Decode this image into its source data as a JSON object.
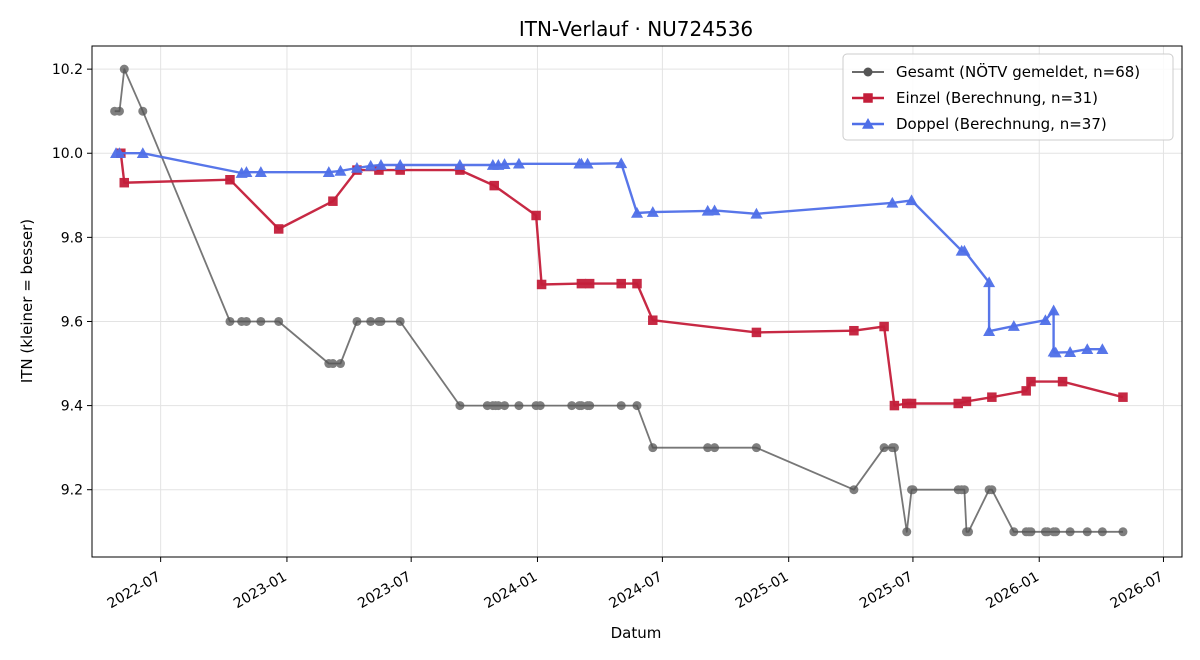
{
  "chart_data": {
    "type": "line",
    "title": "ITN-Verlauf · NU724536",
    "xlabel": "Datum",
    "ylabel": "ITN  (kleiner = besser)",
    "xlim": [
      "2022-03-23",
      "2026-07-28"
    ],
    "ylim": [
      9.04,
      10.255
    ],
    "grid": true,
    "legend_position": "top-right",
    "x_ticks": [
      "2022-07-01",
      "2023-01-01",
      "2023-07-01",
      "2024-01-01",
      "2024-07-01",
      "2025-01-01",
      "2025-07-01",
      "2026-01-01",
      "2026-07-01"
    ],
    "x_tick_labels": [
      "2022-07",
      "2023-01",
      "2023-07",
      "2024-01",
      "2024-07",
      "2025-01",
      "2025-07",
      "2026-01",
      "2026-07"
    ],
    "y_ticks": [
      9.2,
      9.4,
      9.6,
      9.8,
      10.0,
      10.2
    ],
    "y_tick_labels": [
      "9.2",
      "9.4",
      "9.6",
      "9.8",
      "10.0",
      "10.2"
    ],
    "series": [
      {
        "name": "Gesamt (NÖTV gemeldet, n=68)",
        "color": "#555555",
        "marker": "circle",
        "points": [
          [
            "2022-04-25",
            10.1
          ],
          [
            "2022-05-02",
            10.1
          ],
          [
            "2022-05-09",
            10.2
          ],
          [
            "2022-06-05",
            10.1
          ],
          [
            "2022-10-10",
            9.6
          ],
          [
            "2022-10-27",
            9.6
          ],
          [
            "2022-11-03",
            9.6
          ],
          [
            "2022-11-24",
            9.6
          ],
          [
            "2022-12-20",
            9.6
          ],
          [
            "2023-03-03",
            9.5
          ],
          [
            "2023-03-09",
            9.5
          ],
          [
            "2023-03-20",
            9.5
          ],
          [
            "2023-04-13",
            9.6
          ],
          [
            "2023-05-03",
            9.6
          ],
          [
            "2023-05-15",
            9.6
          ],
          [
            "2023-05-18",
            9.6
          ],
          [
            "2023-06-15",
            9.6
          ],
          [
            "2023-09-10",
            9.4
          ],
          [
            "2023-10-20",
            9.4
          ],
          [
            "2023-10-28",
            9.4
          ],
          [
            "2023-11-01",
            9.4
          ],
          [
            "2023-11-05",
            9.4
          ],
          [
            "2023-11-14",
            9.4
          ],
          [
            "2023-12-05",
            9.4
          ],
          [
            "2023-12-30",
            9.4
          ],
          [
            "2024-01-05",
            9.4
          ],
          [
            "2024-02-20",
            9.4
          ],
          [
            "2024-03-02",
            9.4
          ],
          [
            "2024-03-05",
            9.4
          ],
          [
            "2024-03-14",
            9.4
          ],
          [
            "2024-03-17",
            9.4
          ],
          [
            "2024-05-02",
            9.4
          ],
          [
            "2024-05-25",
            9.4
          ],
          [
            "2024-06-17",
            9.3
          ],
          [
            "2024-09-05",
            9.3
          ],
          [
            "2024-09-15",
            9.3
          ],
          [
            "2024-11-15",
            9.3
          ],
          [
            "2025-04-06",
            9.2
          ],
          [
            "2025-05-20",
            9.3
          ],
          [
            "2025-06-01",
            9.3
          ],
          [
            "2025-06-04",
            9.3
          ],
          [
            "2025-06-22",
            9.1
          ],
          [
            "2025-06-29",
            9.2
          ],
          [
            "2025-07-01",
            9.2
          ],
          [
            "2025-09-05",
            9.2
          ],
          [
            "2025-09-10",
            9.2
          ],
          [
            "2025-09-14",
            9.2
          ],
          [
            "2025-09-17",
            9.1
          ],
          [
            "2025-09-20",
            9.1
          ],
          [
            "2025-10-20",
            9.2
          ],
          [
            "2025-10-24",
            9.2
          ],
          [
            "2025-11-25",
            9.1
          ],
          [
            "2025-12-13",
            9.1
          ],
          [
            "2025-12-17",
            9.1
          ],
          [
            "2025-12-20",
            9.1
          ],
          [
            "2026-01-10",
            9.1
          ],
          [
            "2026-01-13",
            9.1
          ],
          [
            "2026-01-22",
            9.1
          ],
          [
            "2026-01-25",
            9.1
          ],
          [
            "2026-02-15",
            9.1
          ],
          [
            "2026-03-12",
            9.1
          ],
          [
            "2026-04-03",
            9.1
          ],
          [
            "2026-05-03",
            9.1
          ]
        ]
      },
      {
        "name": "Einzel (Berechnung, n=31)",
        "color": "#c41e3a",
        "marker": "square",
        "points": [
          [
            "2022-05-04",
            10.0
          ],
          [
            "2022-05-09",
            9.93
          ],
          [
            "2022-10-10",
            9.937
          ],
          [
            "2022-12-20",
            9.82
          ],
          [
            "2023-03-09",
            9.886
          ],
          [
            "2023-04-13",
            9.96
          ],
          [
            "2023-05-15",
            9.96
          ],
          [
            "2023-06-15",
            9.96
          ],
          [
            "2023-09-10",
            9.96
          ],
          [
            "2023-10-30",
            9.923
          ],
          [
            "2023-12-30",
            9.852
          ],
          [
            "2024-01-07",
            9.688
          ],
          [
            "2024-03-05",
            9.69
          ],
          [
            "2024-03-17",
            9.69
          ],
          [
            "2024-05-02",
            9.69
          ],
          [
            "2024-05-25",
            9.69
          ],
          [
            "2024-06-17",
            9.603
          ],
          [
            "2024-11-15",
            9.574
          ],
          [
            "2025-04-06",
            9.578
          ],
          [
            "2025-05-20",
            9.588
          ],
          [
            "2025-06-04",
            9.4
          ],
          [
            "2025-06-22",
            9.405
          ],
          [
            "2025-06-29",
            9.405
          ],
          [
            "2025-09-05",
            9.405
          ],
          [
            "2025-09-17",
            9.41
          ],
          [
            "2025-10-24",
            9.42
          ],
          [
            "2025-12-13",
            9.435
          ],
          [
            "2025-12-20",
            9.457
          ],
          [
            "2026-02-04",
            9.457
          ],
          [
            "2026-05-03",
            9.42
          ]
        ]
      },
      {
        "name": "Doppel (Berechnung, n=37)",
        "color": "#4f6fe8",
        "marker": "triangle",
        "points": [
          [
            "2022-04-27",
            10.0
          ],
          [
            "2022-05-02",
            10.0
          ],
          [
            "2022-06-05",
            10.0
          ],
          [
            "2022-10-27",
            9.953
          ],
          [
            "2022-11-03",
            9.955
          ],
          [
            "2022-11-24",
            9.955
          ],
          [
            "2023-03-03",
            9.955
          ],
          [
            "2023-03-20",
            9.958
          ],
          [
            "2023-04-13",
            9.965
          ],
          [
            "2023-05-03",
            9.97
          ],
          [
            "2023-05-18",
            9.972
          ],
          [
            "2023-06-15",
            9.972
          ],
          [
            "2023-09-10",
            9.972
          ],
          [
            "2023-10-28",
            9.972
          ],
          [
            "2023-11-05",
            9.972
          ],
          [
            "2023-11-14",
            9.974
          ],
          [
            "2023-12-05",
            9.975
          ],
          [
            "2024-03-02",
            9.975
          ],
          [
            "2024-03-05",
            9.975
          ],
          [
            "2024-03-14",
            9.975
          ],
          [
            "2024-05-02",
            9.976
          ],
          [
            "2024-05-25",
            9.858
          ],
          [
            "2024-06-17",
            9.86
          ],
          [
            "2024-09-05",
            9.863
          ],
          [
            "2024-09-15",
            9.864
          ],
          [
            "2024-11-15",
            9.856
          ],
          [
            "2025-06-01",
            9.882
          ],
          [
            "2025-06-29",
            9.888
          ],
          [
            "2025-09-10",
            9.768
          ],
          [
            "2025-09-14",
            9.768
          ],
          [
            "2025-10-20",
            9.693
          ],
          [
            "2025-10-20",
            9.577
          ],
          [
            "2025-11-25",
            9.589
          ],
          [
            "2026-01-10",
            9.603
          ],
          [
            "2026-01-22",
            9.626
          ],
          [
            "2026-01-22",
            9.528
          ],
          [
            "2026-01-25",
            9.526
          ],
          [
            "2026-02-15",
            9.527
          ],
          [
            "2026-03-12",
            9.534
          ],
          [
            "2026-04-03",
            9.534
          ]
        ]
      }
    ]
  }
}
